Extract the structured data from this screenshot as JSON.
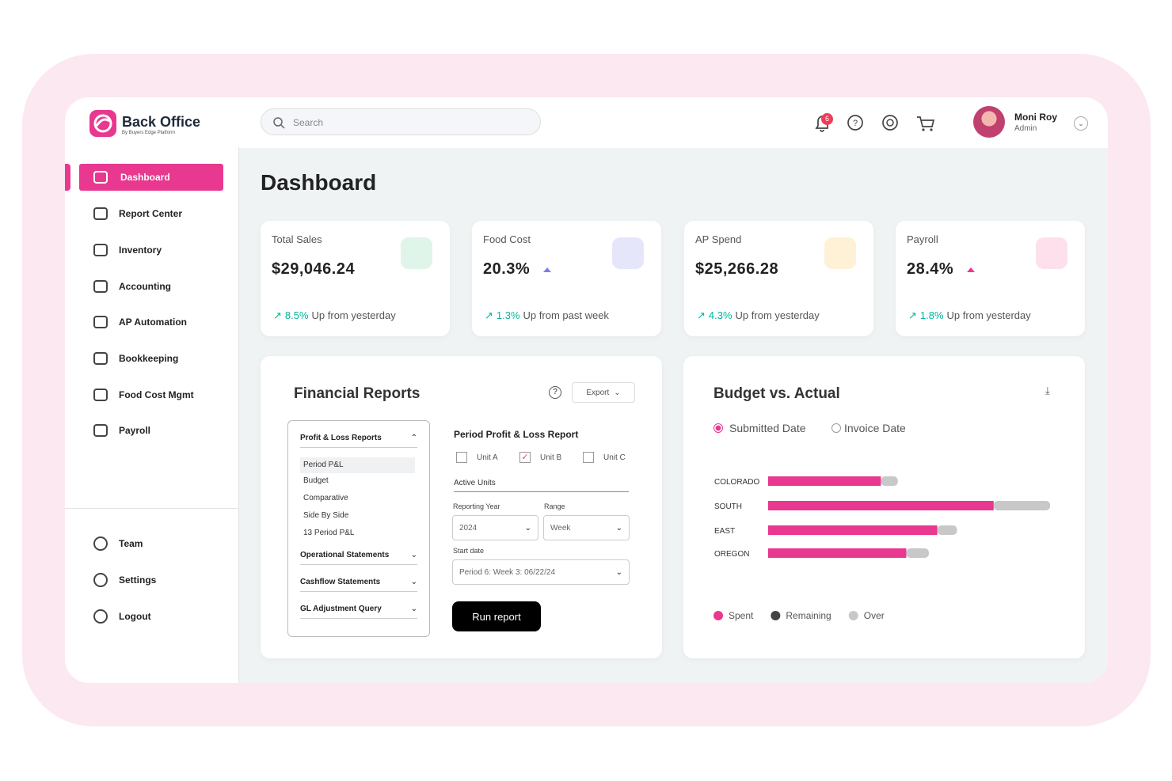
{
  "brand": {
    "name": "Back Office",
    "tagline": "By Buyers Edge Platform"
  },
  "search": {
    "placeholder": "Search"
  },
  "notifications": {
    "count": 6
  },
  "user": {
    "name": "Moni Roy",
    "role": "Admin"
  },
  "nav": {
    "items": [
      "Dashboard",
      "Report Center",
      "Inventory",
      "Accounting",
      "AP Automation",
      "Bookkeeping",
      "Food Cost Mgmt",
      "Payroll"
    ],
    "active": 0,
    "footer": [
      "Team",
      "Settings",
      "Logout"
    ]
  },
  "page_title": "Dashboard",
  "kpis": [
    {
      "label": "Total Sales",
      "value": "$29,046.24",
      "change": "8.5%",
      "change_text": "Up from yesterday",
      "icon_color": "#dff5ea"
    },
    {
      "label": "Food Cost",
      "value": "20.3%",
      "change": "1.3%",
      "change_text": "Up from past week",
      "icon_color": "#e6e6fb"
    },
    {
      "label": "AP Spend",
      "value": "$25,266.28",
      "change": "4.3%",
      "change_text": "Up from yesterday",
      "icon_color": "#fff1d6"
    },
    {
      "label": "Payroll",
      "value": "28.4%",
      "change": "1.8%",
      "change_text": "Up from yesterday",
      "icon_color": "#fde0ec"
    }
  ],
  "financial_reports": {
    "title": "Financial Reports",
    "export": "Export",
    "sections": [
      {
        "title": "Profit & Loss Reports",
        "items": [
          "Period P&L",
          "Budget",
          "Comparative",
          "Side By Side",
          "13 Period P&L"
        ]
      },
      {
        "title": "Operational Statements"
      },
      {
        "title": "Cashflow Statements"
      },
      {
        "title": "GL Adjustment Query"
      }
    ],
    "form_title": "Period Profit & Loss Report",
    "units": [
      {
        "label": "Unit A",
        "checked": false
      },
      {
        "label": "Unit B",
        "checked": true
      },
      {
        "label": "Unit C",
        "checked": false
      }
    ],
    "active_units": "Active Units",
    "reporting_year": {
      "label": "Reporting Year",
      "value": "2024"
    },
    "range": {
      "label": "Range",
      "value": "Week"
    },
    "start_date": {
      "label": "Start date",
      "value": "Period 6: Week 3: 06/22/24"
    },
    "run": "Run report"
  },
  "budget_chart": {
    "title": "Budget vs. Actual",
    "radios": [
      {
        "label": "Submitted Date",
        "selected": true
      },
      {
        "label": "Invoice Date",
        "selected": false
      }
    ],
    "categories": [
      "COLORADO",
      "SOUTH",
      "EAST",
      "OREGON"
    ],
    "series": [
      {
        "name": "Spent",
        "color": "#e8388f",
        "values": [
          40,
          80,
          60,
          49
        ]
      },
      {
        "name": "Remaining",
        "color": "#444444",
        "values": [
          null,
          null,
          null,
          null
        ]
      },
      {
        "name": "Over",
        "color": "#c8c8c8",
        "values": [
          6,
          20,
          7,
          8
        ]
      }
    ]
  }
}
